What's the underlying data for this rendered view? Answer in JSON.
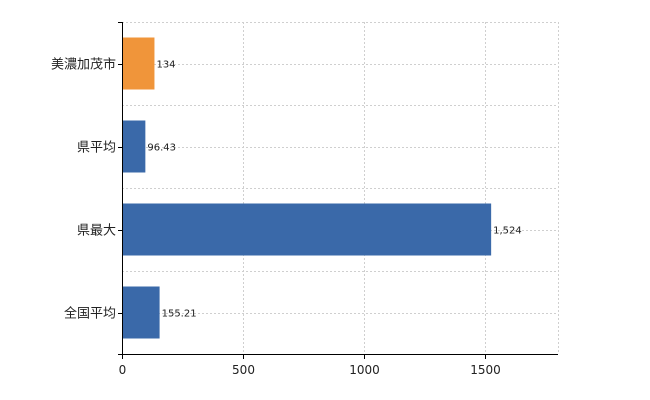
{
  "chart_data": {
    "type": "bar",
    "orientation": "horizontal",
    "categories": [
      "美濃加茂市",
      "県平均",
      "県最大",
      "全国平均"
    ],
    "values": [
      134,
      96.43,
      1524,
      155.21
    ],
    "value_labels": [
      "134",
      "96.43",
      "1,524",
      "155.21"
    ],
    "bar_colors": [
      "#f0953a",
      "#3a69a9",
      "#3a69a9",
      "#3a69a9"
    ],
    "xlim": [
      0,
      1800
    ],
    "x_ticks": [
      0,
      500,
      1000,
      1500
    ],
    "x_tick_labels": [
      "0",
      "500",
      "1000",
      "1500"
    ],
    "grid": true,
    "legend": "none"
  }
}
